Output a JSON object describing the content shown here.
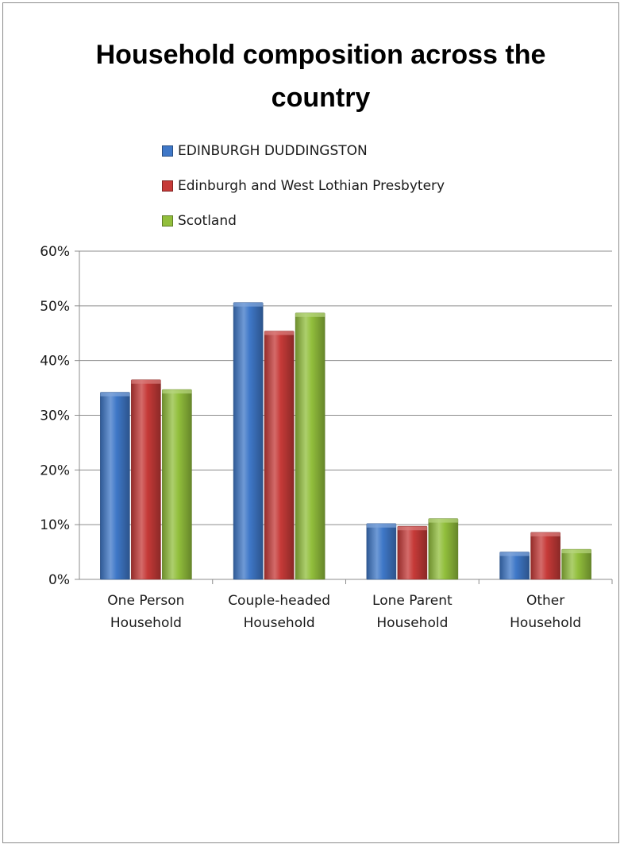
{
  "chart_data": {
    "type": "bar",
    "title": "Household composition across the country",
    "categories": [
      [
        "One Person",
        "Household"
      ],
      [
        "Couple-headed",
        "Household"
      ],
      [
        "Lone Parent",
        "Household"
      ],
      [
        "Other",
        "Household"
      ]
    ],
    "series": [
      {
        "name": "EDINBURGH DUDDINGSTON",
        "color": "#3f78c8",
        "values": [
          34.2,
          50.6,
          10.2,
          5.0
        ]
      },
      {
        "name": "Edinburgh and West Lothian Presbytery",
        "color": "#c63a38",
        "values": [
          36.5,
          45.4,
          9.7,
          8.6
        ]
      },
      {
        "name": "Scotland",
        "color": "#92bf3c",
        "values": [
          34.7,
          48.7,
          11.1,
          5.5
        ]
      }
    ],
    "ylim": [
      0,
      60
    ],
    "yticks": [
      "0%",
      "10%",
      "20%",
      "30%",
      "40%",
      "50%",
      "60%"
    ],
    "grid": true,
    "legend_position": "top"
  }
}
